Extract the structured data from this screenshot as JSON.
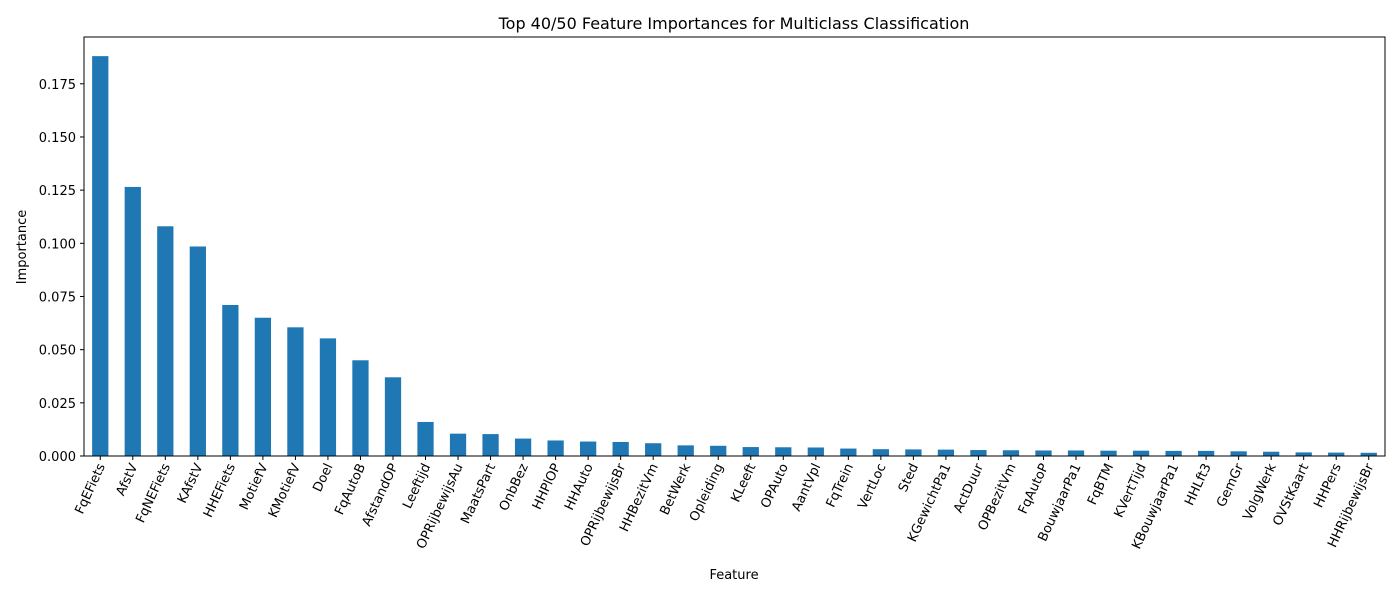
{
  "chart_data": {
    "type": "bar",
    "title": "Top 40/50 Feature Importances for Multiclass Classification",
    "xlabel": "Feature",
    "ylabel": "Importance",
    "ylim": [
      0,
      0.197
    ],
    "yticks": [
      "0.000",
      "0.025",
      "0.050",
      "0.075",
      "0.100",
      "0.125",
      "0.150",
      "0.175"
    ],
    "ytick_values": [
      0,
      0.025,
      0.05,
      0.075,
      0.1,
      0.125,
      0.15,
      0.175
    ],
    "grid": false,
    "legend": "none",
    "bar_color": "#1f77b4",
    "categories": [
      "FqEFiets",
      "AfstV",
      "FqNEFiets",
      "KAfstV",
      "HHEFiets",
      "MotiefV",
      "KMotiefV",
      "Doel",
      "FqAutoB",
      "AfstandOP",
      "Leeftijd",
      "OPRijbewijsAu",
      "MaatsPart",
      "OnbBez",
      "HHPlOP",
      "HHAuto",
      "OPRijbewijsBr",
      "HHBezitVm",
      "BetWerk",
      "Opleiding",
      "KLeeft",
      "OPAuto",
      "AantVpl",
      "FqTrein",
      "VertLoc",
      "Sted",
      "KGewichtPa1",
      "ActDuur",
      "OPBezitVm",
      "FqAutoP",
      "BouwjaarPa1",
      "FqBTM",
      "KVertTijd",
      "KBouwjaarPa1",
      "HHLft3",
      "GemGr",
      "VolgWerk",
      "OVStKaart",
      "HHPers",
      "HHRijbewijsBr"
    ],
    "values": [
      0.188,
      0.1265,
      0.108,
      0.0985,
      0.071,
      0.065,
      0.0605,
      0.0553,
      0.045,
      0.037,
      0.016,
      0.0105,
      0.0103,
      0.0082,
      0.0073,
      0.0068,
      0.0066,
      0.006,
      0.005,
      0.0048,
      0.0042,
      0.0041,
      0.004,
      0.0035,
      0.0032,
      0.0031,
      0.003,
      0.0028,
      0.0027,
      0.0026,
      0.0026,
      0.0025,
      0.0025,
      0.0024,
      0.0024,
      0.0022,
      0.002,
      0.0017,
      0.0016,
      0.0015
    ]
  }
}
